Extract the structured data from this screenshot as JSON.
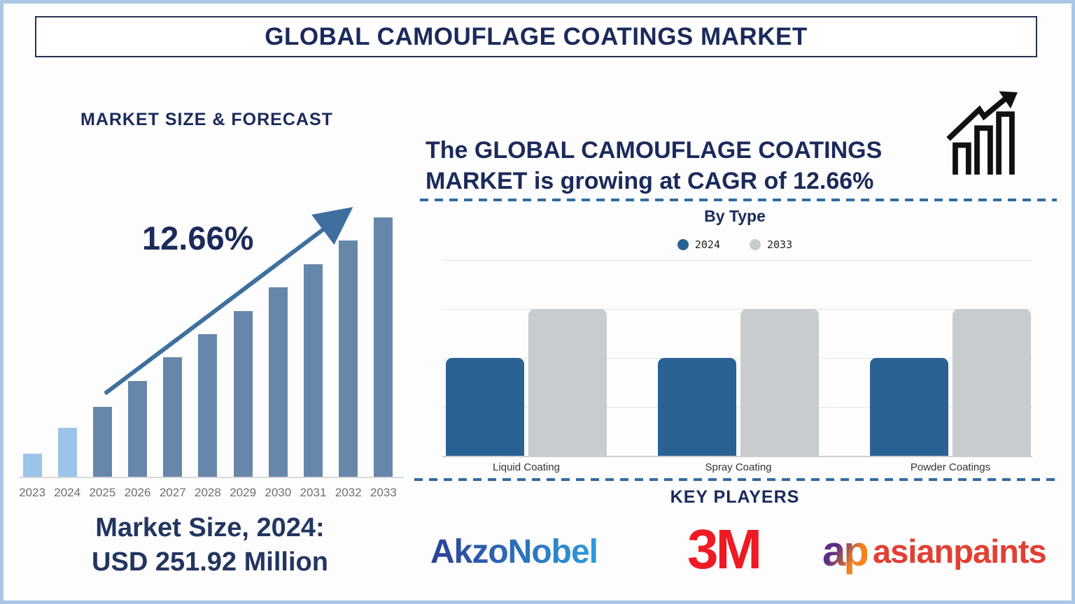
{
  "page": {
    "title": "GLOBAL CAMOUFLAGE COATINGS MARKET"
  },
  "left_section": {
    "heading": "MARKET SIZE & FORECAST",
    "cagr_label": "12.66%",
    "market_size_line1": "Market Size, 2024:",
    "market_size_line2": "USD 251.92 Million"
  },
  "right_section": {
    "headline_line1": "The GLOBAL CAMOUFLAGE COATINGS",
    "headline_line2": "MARKET is growing at CAGR of 12.66%",
    "by_type_title": "By Type",
    "legend": [
      {
        "label": "2024",
        "color": "#2a6294"
      },
      {
        "label": "2033",
        "color": "#c9cccf"
      }
    ],
    "key_players_heading": "KEY PLAYERS",
    "logos": {
      "akzonobel": {
        "text": "AkzoNobel",
        "color_start": "#2b3f96",
        "color_end": "#2f9cdb"
      },
      "threeM": {
        "text": "3M",
        "color": "#ee1b24"
      },
      "asianpaints": {
        "glyph": "ap",
        "text": "asianpaints",
        "color": "#e23f33",
        "glyph_color_start": "#5b2e86",
        "glyph_color_end": "#f58220"
      }
    }
  },
  "colors": {
    "navy": "#1b2a5a",
    "steel_accent": "#2e6da4",
    "arrow": "#3f6f9e",
    "frame": "#a9c7e6",
    "axis_gray": "#d9d9d9"
  },
  "chart_data": [
    {
      "type": "bar",
      "title": "MARKET SIZE & FORECAST",
      "categories": [
        "2023",
        "2024",
        "2025",
        "2026",
        "2027",
        "2028",
        "2029",
        "2030",
        "2031",
        "2032",
        "2033"
      ],
      "values": [
        9,
        19,
        27,
        37,
        46,
        55,
        64,
        73,
        82,
        91,
        100
      ],
      "values_note": "relative bar heights in % of 2033 bar; y-axis unlabeled on the graphic",
      "annotation": "12.66%",
      "caption": "Market Size, 2024: USD 251.92 Million",
      "palette": {
        "history": "#9cc3e8",
        "forecast": "#6787aa"
      },
      "bar_color_keys": [
        "history",
        "history",
        "forecast",
        "forecast",
        "forecast",
        "forecast",
        "forecast",
        "forecast",
        "forecast",
        "forecast",
        "forecast"
      ],
      "xlabel": "",
      "ylabel": "",
      "grid": false,
      "legend_position": "none"
    },
    {
      "type": "bar",
      "title": "By Type",
      "categories": [
        "Liquid Coating",
        "Spray Coating",
        "Powder Coatings"
      ],
      "series": [
        {
          "name": "2024",
          "color": "#2a6294",
          "values": [
            50,
            50,
            50
          ]
        },
        {
          "name": "2033",
          "color": "#c9cccf",
          "values": [
            75,
            75,
            75
          ]
        }
      ],
      "values_note": "relative heights in % of top gridline; y-axis unlabeled on the graphic",
      "ylim": [
        0,
        100
      ],
      "grid": true,
      "legend_position": "top"
    }
  ]
}
